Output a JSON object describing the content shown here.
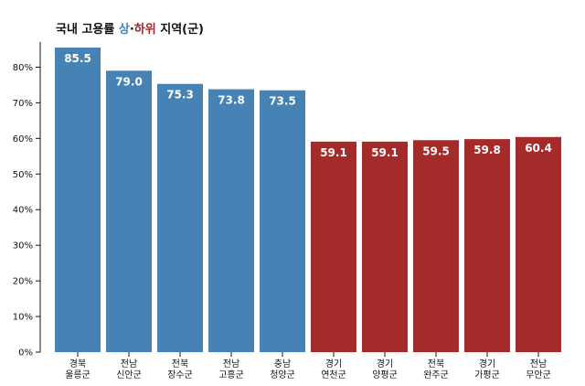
{
  "title": {
    "prefix": "국내 고용률 ",
    "up": "상",
    "sep": "·",
    "down": "하위",
    "suffix": " 지역(군)"
  },
  "colors": {
    "up": "#4682b4",
    "down": "#a52a2a"
  },
  "chart_data": {
    "type": "bar",
    "title": "국내 고용률 상·하위 지역(군)",
    "xlabel": "",
    "ylabel": "",
    "ylim": [
      0,
      85.5
    ],
    "yticks": [
      0,
      10,
      20,
      30,
      40,
      50,
      60,
      70,
      80
    ],
    "ytick_labels": [
      "0%",
      "10%",
      "20%",
      "30%",
      "40%",
      "50%",
      "60%",
      "70%",
      "80%"
    ],
    "grid": false,
    "categories": [
      [
        "경북",
        "울릉군"
      ],
      [
        "전남",
        "신안군"
      ],
      [
        "전북",
        "장수군"
      ],
      [
        "전남",
        "고흥군"
      ],
      [
        "충남",
        "청양군"
      ],
      [
        "경기",
        "연천군"
      ],
      [
        "경기",
        "양평군"
      ],
      [
        "전북",
        "완주군"
      ],
      [
        "경기",
        "가평군"
      ],
      [
        "전남",
        "무안군"
      ]
    ],
    "values": [
      85.5,
      79.0,
      75.3,
      73.8,
      73.5,
      59.1,
      59.1,
      59.5,
      59.8,
      60.4
    ],
    "value_labels": [
      "85.5",
      "79.0",
      "75.3",
      "73.8",
      "73.5",
      "59.1",
      "59.1",
      "59.5",
      "59.8",
      "60.4"
    ],
    "groups": [
      "up",
      "up",
      "up",
      "up",
      "up",
      "down",
      "down",
      "down",
      "down",
      "down"
    ]
  }
}
